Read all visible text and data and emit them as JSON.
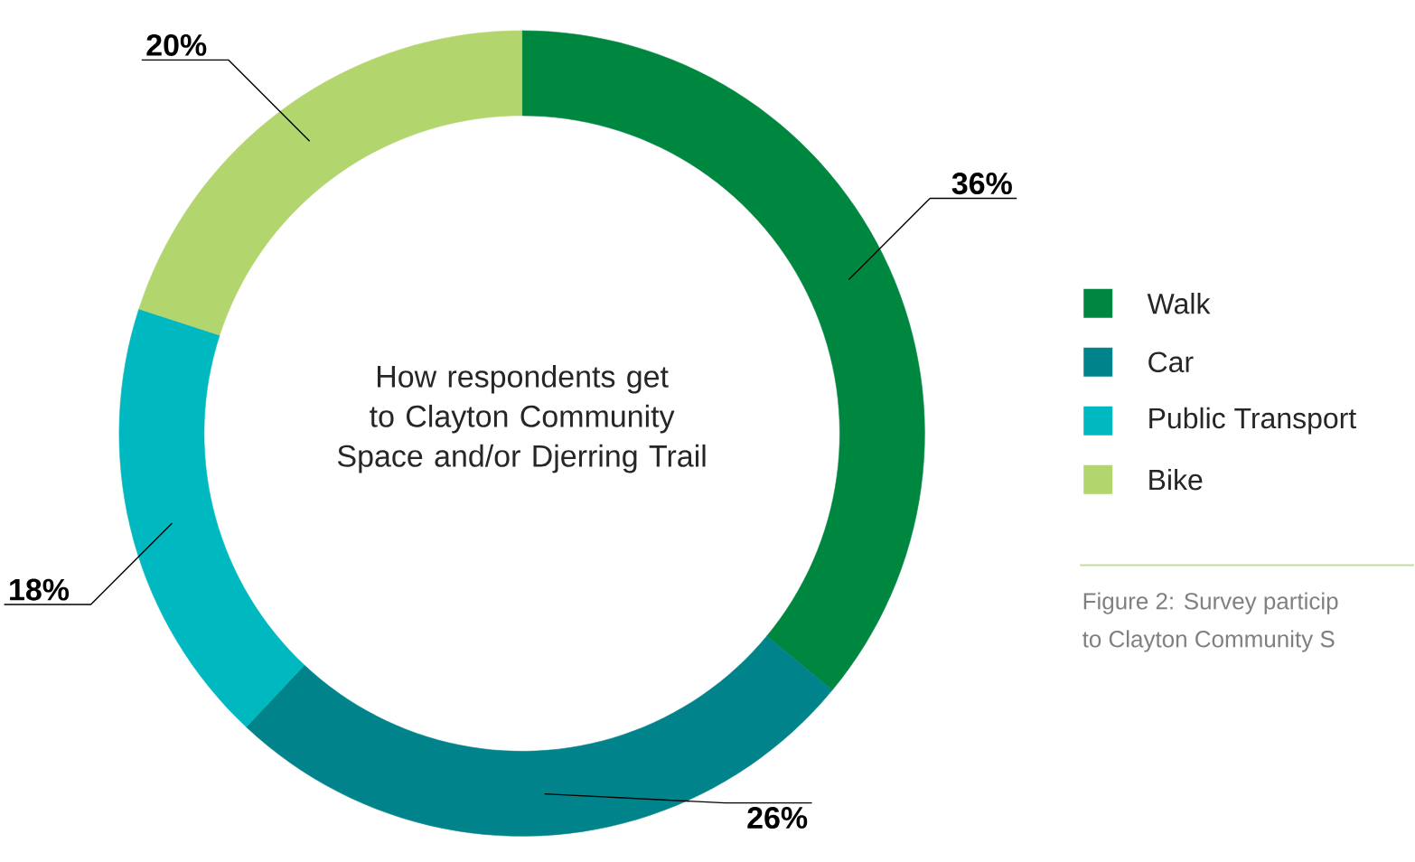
{
  "chart_data": {
    "type": "donut",
    "title": "How respondents get to Clayton Community Space and/or Djerring Trail",
    "categories": [
      "Walk",
      "Car",
      "Public Transport",
      "Bike"
    ],
    "values": [
      36,
      26,
      18,
      20
    ],
    "colors": [
      "#00873f",
      "#00838a",
      "#00b8c0",
      "#b2d56e"
    ],
    "value_labels": [
      "36%",
      "26%",
      "18%",
      "20%"
    ],
    "legend": "right",
    "annotations": [
      "Figure 2: Survey particip",
      "to Clayton Community S"
    ]
  }
}
